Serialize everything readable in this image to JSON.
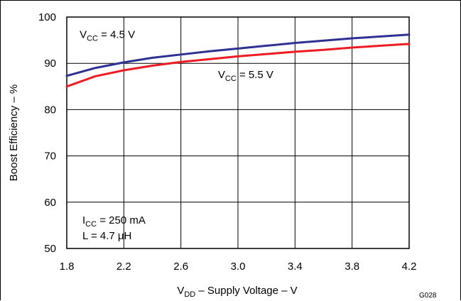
{
  "chart_data": {
    "type": "line",
    "xlabel": {
      "main": "V",
      "sub": "DD",
      "rest": " – Supply Voltage – V"
    },
    "ylabel": "Boost Efficiency – %",
    "xlim": [
      1.8,
      4.2
    ],
    "ylim": [
      50,
      100
    ],
    "xticks": [
      1.8,
      2.2,
      2.6,
      3.0,
      3.4,
      3.8,
      4.2
    ],
    "xtick_labels": [
      "1.8",
      "2.2",
      "2.6",
      "3.0",
      "3.4",
      "3.8",
      "4.2"
    ],
    "yticks": [
      50,
      60,
      70,
      80,
      90,
      100
    ],
    "ytick_labels": [
      "50",
      "60",
      "70",
      "80",
      "90",
      "100"
    ],
    "grid": true,
    "series": [
      {
        "color": "#2e3192",
        "label": {
          "main": "V",
          "sub": "CC",
          "rest": " = 4.5 V"
        },
        "x": [
          1.8,
          2.0,
          2.2,
          2.4,
          2.6,
          2.8,
          3.0,
          3.2,
          3.4,
          3.6,
          3.8,
          4.0,
          4.2
        ],
        "values": [
          87.3,
          89.0,
          90.2,
          91.2,
          91.9,
          92.6,
          93.2,
          93.8,
          94.4,
          94.9,
          95.4,
          95.8,
          96.2
        ]
      },
      {
        "color": "#ed1c24",
        "label": {
          "main": "V",
          "sub": "CC",
          "rest": " = 5.5 V"
        },
        "x": [
          1.8,
          2.0,
          2.2,
          2.4,
          2.6,
          2.8,
          3.0,
          3.2,
          3.4,
          3.6,
          3.8,
          4.0,
          4.2
        ],
        "values": [
          85.0,
          87.2,
          88.5,
          89.5,
          90.3,
          90.9,
          91.5,
          92.0,
          92.5,
          92.9,
          93.4,
          93.8,
          94.2
        ]
      }
    ],
    "conditions": [
      {
        "main": "I",
        "sub": "CC",
        "rest": " = 250 mA"
      },
      {
        "main": "L = 4.7 ",
        "sub": "",
        "rest": "μH"
      }
    ],
    "figure_id": "G028"
  }
}
